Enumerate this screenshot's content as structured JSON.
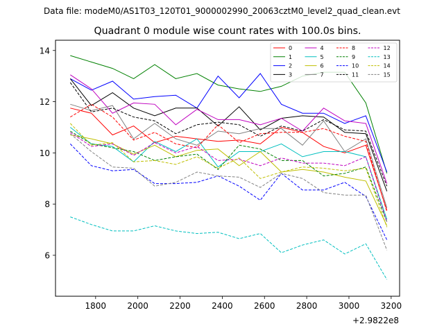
{
  "chart_data": {
    "type": "line",
    "suptitle": "Data file: modeM0/AS1T03_120T01_9000002990_20063cztM0_level2_quad_clean.evt",
    "title": "Quadrant 0 module wise count rates with 100.0s bins.",
    "xlabel": "",
    "ylabel": "",
    "x_offset_label": "+2.9822e8",
    "xlim": [
      1610,
      3240
    ],
    "ylim": [
      4.4,
      14.4
    ],
    "xticks": [
      1800,
      2000,
      2200,
      2400,
      2600,
      2800,
      3000,
      3200
    ],
    "yticks": [
      6,
      8,
      10,
      12,
      14
    ],
    "x": [
      1680,
      1780,
      1880,
      1980,
      2080,
      2180,
      2280,
      2380,
      2480,
      2580,
      2680,
      2780,
      2880,
      2980,
      3080,
      3180
    ],
    "legend_position": "top-right",
    "legend_columns": 4,
    "series": [
      {
        "name": "0",
        "color": "#ff0000",
        "dash": "solid",
        "values": [
          11.75,
          11.55,
          10.7,
          11.05,
          10.4,
          10.65,
          10.55,
          10.45,
          10.5,
          10.35,
          11.0,
          10.8,
          10.25,
          10.0,
          10.3,
          7.75
        ]
      },
      {
        "name": "1",
        "color": "#008000",
        "dash": "solid",
        "values": [
          13.8,
          13.55,
          13.3,
          12.9,
          13.45,
          12.9,
          13.1,
          12.65,
          12.5,
          12.4,
          12.6,
          13.0,
          13.15,
          13.15,
          11.95,
          9.2
        ]
      },
      {
        "name": "2",
        "color": "#0000ff",
        "dash": "solid",
        "values": [
          12.9,
          12.45,
          12.8,
          12.1,
          12.2,
          12.25,
          11.75,
          13.0,
          12.15,
          13.1,
          11.9,
          11.55,
          11.55,
          11.15,
          11.45,
          9.25
        ]
      },
      {
        "name": "3",
        "color": "#000000",
        "dash": "solid",
        "values": [
          12.9,
          11.85,
          12.35,
          11.75,
          11.45,
          11.75,
          11.75,
          11.05,
          11.8,
          10.9,
          11.35,
          11.45,
          11.4,
          10.8,
          10.75,
          8.5
        ]
      },
      {
        "name": "4",
        "color": "#bf00bf",
        "dash": "solid",
        "values": [
          13.05,
          12.5,
          11.55,
          11.95,
          11.9,
          11.1,
          11.7,
          11.3,
          11.3,
          11.1,
          11.35,
          10.85,
          11.75,
          11.25,
          11.15,
          8.8
        ]
      },
      {
        "name": "5",
        "color": "#00bfbf",
        "dash": "solid",
        "values": [
          11.0,
          10.35,
          10.25,
          9.65,
          10.45,
          10.05,
          10.55,
          9.45,
          10.05,
          10.05,
          10.35,
          9.85,
          10.05,
          10.05,
          9.85,
          7.4
        ]
      },
      {
        "name": "6",
        "color": "#bfbf00",
        "dash": "solid",
        "values": [
          10.7,
          10.55,
          10.35,
          9.95,
          10.3,
          9.85,
          10.1,
          10.15,
          9.5,
          10.05,
          9.25,
          9.35,
          9.25,
          9.05,
          8.9,
          7.15
        ]
      },
      {
        "name": "7",
        "color": "#808080",
        "dash": "solid",
        "values": [
          11.9,
          11.65,
          11.85,
          10.55,
          11.15,
          10.55,
          10.3,
          10.85,
          10.75,
          10.95,
          10.95,
          10.3,
          11.25,
          10.05,
          10.55,
          7.85
        ]
      },
      {
        "name": "8",
        "color": "#ff0000",
        "dash": "dashed",
        "values": [
          11.4,
          11.9,
          11.4,
          10.5,
          10.8,
          10.35,
          10.2,
          11.1,
          10.4,
          10.75,
          10.8,
          10.8,
          10.95,
          10.65,
          10.45,
          7.7
        ]
      },
      {
        "name": "9",
        "color": "#008000",
        "dash": "dashed",
        "values": [
          10.85,
          10.35,
          10.2,
          10.05,
          9.7,
          9.85,
          9.95,
          9.35,
          10.3,
          10.15,
          9.7,
          9.7,
          9.1,
          9.2,
          9.45,
          7.3
        ]
      },
      {
        "name": "10",
        "color": "#0000ff",
        "dash": "dashed",
        "values": [
          10.35,
          9.5,
          9.3,
          9.35,
          8.8,
          8.8,
          8.85,
          9.1,
          8.7,
          8.15,
          9.2,
          8.55,
          8.55,
          8.85,
          8.3,
          6.6
        ]
      },
      {
        "name": "11",
        "color": "#000000",
        "dash": "dashed",
        "values": [
          12.75,
          11.6,
          11.75,
          11.4,
          11.25,
          10.75,
          11.1,
          11.2,
          11.1,
          10.65,
          11.05,
          10.85,
          11.3,
          10.9,
          10.85,
          8.7
        ]
      },
      {
        "name": "12",
        "color": "#bf00bf",
        "dash": "dashed",
        "values": [
          10.8,
          10.25,
          10.35,
          9.9,
          10.4,
          10.0,
          10.25,
          9.7,
          9.75,
          9.5,
          9.8,
          9.6,
          9.6,
          9.5,
          9.85,
          7.3
        ]
      },
      {
        "name": "13",
        "color": "#00bfbf",
        "dash": "dashed",
        "values": [
          7.5,
          7.2,
          6.95,
          6.95,
          7.15,
          6.95,
          6.85,
          6.9,
          6.65,
          6.85,
          6.1,
          6.4,
          6.6,
          6.05,
          6.45,
          5.05
        ]
      },
      {
        "name": "14",
        "color": "#bfbf00",
        "dash": "dashed",
        "values": [
          11.15,
          10.3,
          10.4,
          9.65,
          9.7,
          9.55,
          9.85,
          9.4,
          9.8,
          9.0,
          9.25,
          9.45,
          9.4,
          9.3,
          9.4,
          7.1
        ]
      },
      {
        "name": "15",
        "color": "#808080",
        "dash": "dashed",
        "values": [
          10.75,
          10.05,
          9.45,
          9.4,
          8.7,
          8.85,
          9.25,
          9.1,
          9.05,
          8.65,
          9.2,
          9.0,
          8.45,
          8.35,
          8.35,
          6.2
        ]
      }
    ]
  }
}
